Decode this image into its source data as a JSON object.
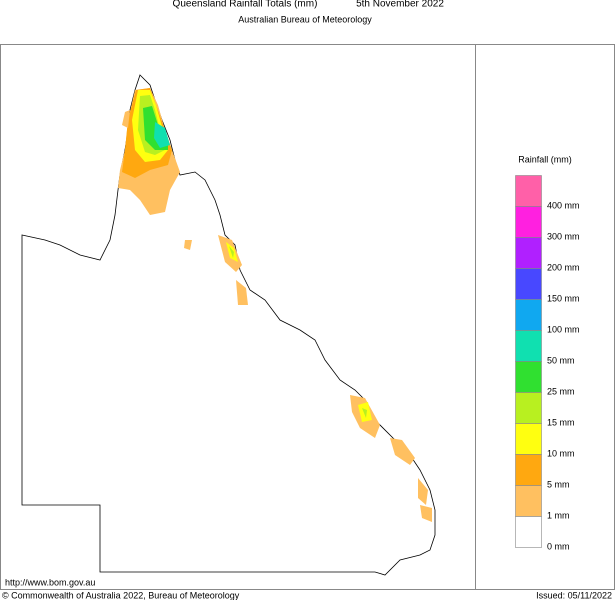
{
  "header": {
    "title": "Queensland Rainfall Totals (mm)",
    "date": "5th November 2022",
    "subtitle": "Australian Bureau of Meteorology"
  },
  "legend": {
    "title": "Rainfall (mm)",
    "colors": [
      "#ff60a8",
      "#ff20e0",
      "#b020ff",
      "#4848ff",
      "#10a8f0",
      "#10e0b0",
      "#30e030",
      "#b8f020",
      "#ffff10",
      "#ffa810",
      "#ffc060",
      "#ffffff"
    ],
    "labels": [
      "400 mm",
      "300 mm",
      "200 mm",
      "150 mm",
      "100 mm",
      "50 mm",
      "25 mm",
      "15 mm",
      "10 mm",
      "5 mm",
      "1 mm",
      "0 mm"
    ]
  },
  "footer": {
    "url": "http://www.bom.gov.au",
    "copyright": "© Commonwealth of Australia 2022, Bureau of Meteorology",
    "issued": "Issued: 05/11/2022"
  }
}
